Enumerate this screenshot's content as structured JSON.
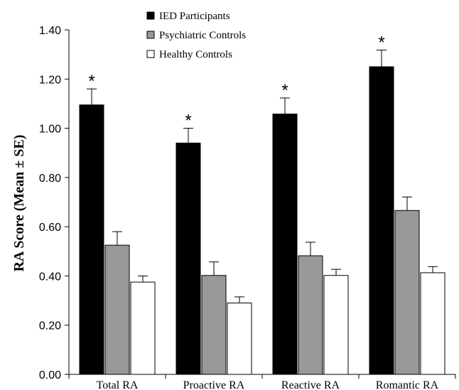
{
  "chart_data": {
    "type": "bar",
    "title": "",
    "xlabel": "",
    "ylabel": "RA Score (Mean ± SE)",
    "ylim": [
      0,
      1.4
    ],
    "y_ticks": [
      "0.00",
      "0.20",
      "0.40",
      "0.60",
      "0.80",
      "1.00",
      "1.20",
      "1.40"
    ],
    "categories": [
      "Total RA",
      "Proactive RA",
      "Reactive RA",
      "Romantic RA"
    ],
    "series": [
      {
        "name": "IED Participants",
        "color": "#000000",
        "values": [
          1.095,
          0.94,
          1.058,
          1.25
        ],
        "se": [
          0.065,
          0.06,
          0.065,
          0.068
        ]
      },
      {
        "name": "Psychiatric Controls",
        "color": "#999999",
        "values": [
          0.525,
          0.402,
          0.482,
          0.666
        ],
        "se": [
          0.055,
          0.055,
          0.055,
          0.055
        ]
      },
      {
        "name": "Healthy Controls",
        "color": "#ffffff",
        "values": [
          0.375,
          0.29,
          0.402,
          0.413
        ],
        "se": [
          0.025,
          0.025,
          0.025,
          0.025
        ]
      }
    ],
    "significance_marker": "*",
    "legend_position": "top-left",
    "grid": false
  }
}
